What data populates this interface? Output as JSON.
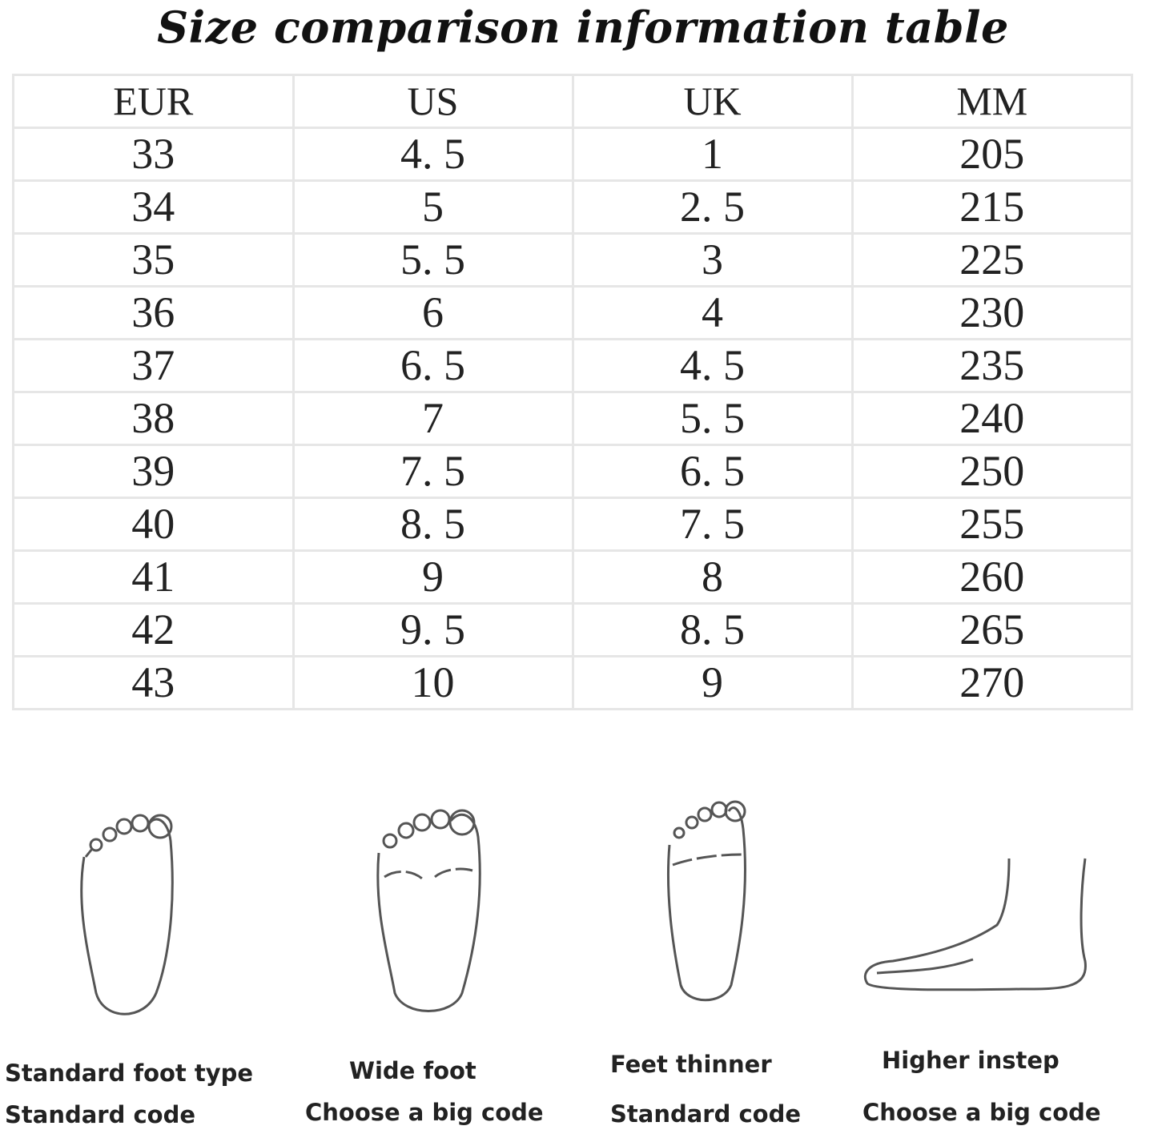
{
  "title": "Size comparison information table",
  "table": {
    "headers": [
      "EUR",
      "US",
      "UK",
      "MM"
    ],
    "rows": [
      [
        "33",
        "4. 5",
        "1",
        "205"
      ],
      [
        "34",
        "5",
        "2. 5",
        "215"
      ],
      [
        "35",
        "5. 5",
        "3",
        "225"
      ],
      [
        "36",
        "6",
        "4",
        "230"
      ],
      [
        "37",
        "6. 5",
        "4. 5",
        "235"
      ],
      [
        "38",
        "7",
        "5. 5",
        "240"
      ],
      [
        "39",
        "7. 5",
        "6. 5",
        "250"
      ],
      [
        "40",
        "8. 5",
        "7. 5",
        "255"
      ],
      [
        "41",
        "9",
        "8",
        "260"
      ],
      [
        "42",
        "9. 5",
        "8. 5",
        "265"
      ],
      [
        "43",
        "10",
        "9",
        "270"
      ]
    ]
  },
  "foot_types": [
    {
      "type": "Standard foot type",
      "advice": "Standard code"
    },
    {
      "type": "Wide foot",
      "advice": "Choose a big code"
    },
    {
      "type": "Feet thinner",
      "advice": "Standard code"
    },
    {
      "type": "Higher instep",
      "advice": "Choose a big code"
    }
  ]
}
